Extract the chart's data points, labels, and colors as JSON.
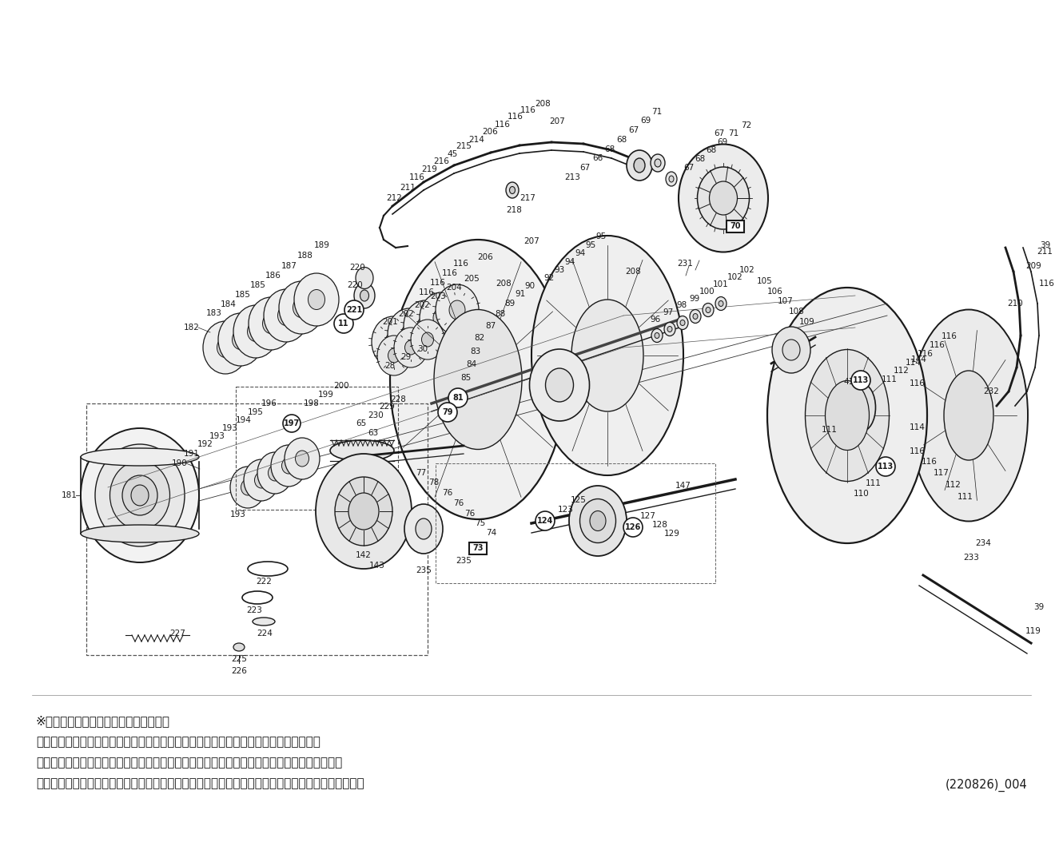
{
  "bg_color": "#ffffff",
  "fig_width": 13.25,
  "fig_height": 10.74,
  "dpi": 100,
  "footer_lines": [
    "※丸付き番号はベアリングを示します。",
    "調整座金類に関しましては、必ずしも分解図中の表現と一致しない場合がございます。",
    "四角付き番号のパーツについては修理専用パーツとなり、お客様自身での交換はできません。",
    "アフターサービスにお預け下さい。分解の際はお客様の自己責任となりますことをご了承ください。"
  ],
  "footer_code": "(220826)_004",
  "lc": "#1a1a1a",
  "tc": "#1a1a1a",
  "fs": 7.5,
  "footer_fontsize": 11.0,
  "footer_code_fontsize": 10.5
}
